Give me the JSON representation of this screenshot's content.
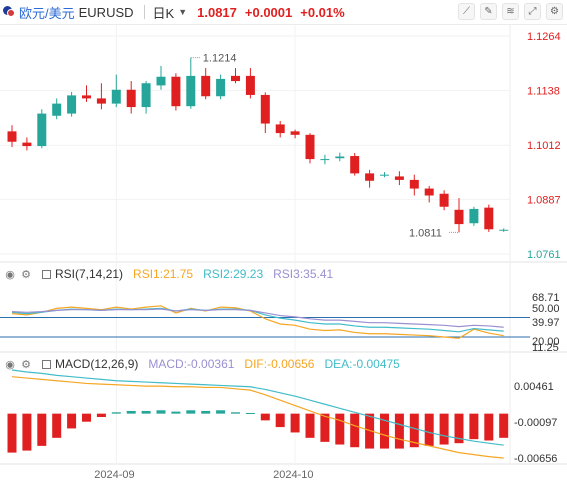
{
  "header": {
    "pair_cn": "欧元/美元",
    "pair_code": "EURUSD",
    "period": "日K",
    "price": "1.0817",
    "change": "+0.0001",
    "change_pct": "+0.01%",
    "tool_icons": [
      "line-tool-icon",
      "draw-tool-icon",
      "indicator-icon",
      "fullscreen-icon",
      "settings-icon"
    ]
  },
  "colors": {
    "up": "#26a69a",
    "down": "#e02020",
    "price_axis": "#e02020",
    "axis_green": "#26a69a",
    "rsi1": "#f5a623",
    "rsi2": "#41bcc9",
    "rsi3": "#9b8fd0",
    "macd": "#9b8fd0",
    "dif": "#f5a623",
    "dea": "#41bcc9"
  },
  "chart_data": {
    "type": "candlestick",
    "price_axis_ticks": [
      "1.1264",
      "1.1138",
      "1.1012",
      "1.0887",
      "1.0761"
    ],
    "price_ylim": [
      1.0761,
      1.1264
    ],
    "high_label": "1.1214",
    "low_label": "1.0811",
    "x_labels": [
      {
        "index": 7,
        "label": "2024-09"
      },
      {
        "index": 19,
        "label": "2024-10"
      }
    ],
    "candles": [
      {
        "o": 1.1044,
        "h": 1.1058,
        "l": 1.1008,
        "c": 1.102
      },
      {
        "o": 1.1018,
        "h": 1.103,
        "l": 1.1,
        "c": 1.101
      },
      {
        "o": 1.101,
        "h": 1.1095,
        "l": 1.1005,
        "c": 1.1085
      },
      {
        "o": 1.108,
        "h": 1.112,
        "l": 1.1072,
        "c": 1.1108
      },
      {
        "o": 1.1085,
        "h": 1.1135,
        "l": 1.1078,
        "c": 1.1127
      },
      {
        "o": 1.1127,
        "h": 1.115,
        "l": 1.1112,
        "c": 1.112
      },
      {
        "o": 1.112,
        "h": 1.1155,
        "l": 1.1095,
        "c": 1.1108
      },
      {
        "o": 1.1108,
        "h": 1.1175,
        "l": 1.11,
        "c": 1.114
      },
      {
        "o": 1.114,
        "h": 1.116,
        "l": 1.1085,
        "c": 1.11
      },
      {
        "o": 1.11,
        "h": 1.116,
        "l": 1.1085,
        "c": 1.1155
      },
      {
        "o": 1.115,
        "h": 1.1195,
        "l": 1.114,
        "c": 1.117
      },
      {
        "o": 1.117,
        "h": 1.1178,
        "l": 1.1092,
        "c": 1.1102
      },
      {
        "o": 1.1102,
        "h": 1.1214,
        "l": 1.1096,
        "c": 1.1172
      },
      {
        "o": 1.1172,
        "h": 1.119,
        "l": 1.1118,
        "c": 1.1125
      },
      {
        "o": 1.1125,
        "h": 1.1175,
        "l": 1.1118,
        "c": 1.1165
      },
      {
        "o": 1.1172,
        "h": 1.119,
        "l": 1.1155,
        "c": 1.116
      },
      {
        "o": 1.1172,
        "h": 1.119,
        "l": 1.112,
        "c": 1.1128
      },
      {
        "o": 1.1128,
        "h": 1.1134,
        "l": 1.104,
        "c": 1.1062
      },
      {
        "o": 1.106,
        "h": 1.1068,
        "l": 1.103,
        "c": 1.104
      },
      {
        "o": 1.1044,
        "h": 1.1048,
        "l": 1.1028,
        "c": 1.1036
      },
      {
        "o": 1.1036,
        "h": 1.104,
        "l": 1.097,
        "c": 1.098
      },
      {
        "o": 1.0978,
        "h": 1.099,
        "l": 1.0968,
        "c": 1.098
      },
      {
        "o": 1.0982,
        "h": 1.0995,
        "l": 1.0975,
        "c": 1.0986
      },
      {
        "o": 1.0987,
        "h": 1.0994,
        "l": 1.0942,
        "c": 1.0947
      },
      {
        "o": 1.0947,
        "h": 1.0955,
        "l": 1.0914,
        "c": 1.093
      },
      {
        "o": 1.0944,
        "h": 1.095,
        "l": 1.0938,
        "c": 1.0944
      },
      {
        "o": 1.094,
        "h": 1.0952,
        "l": 1.092,
        "c": 1.0932
      },
      {
        "o": 1.0932,
        "h": 1.0944,
        "l": 1.0896,
        "c": 1.0912
      },
      {
        "o": 1.0912,
        "h": 1.0918,
        "l": 1.088,
        "c": 1.0896
      },
      {
        "o": 1.09,
        "h": 1.0908,
        "l": 1.0862,
        "c": 1.087
      },
      {
        "o": 1.0863,
        "h": 1.089,
        "l": 1.0811,
        "c": 1.083
      },
      {
        "o": 1.0832,
        "h": 1.087,
        "l": 1.0826,
        "c": 1.0865
      },
      {
        "o": 1.0868,
        "h": 1.0875,
        "l": 1.0812,
        "c": 1.0818
      },
      {
        "o": 1.0816,
        "h": 1.082,
        "l": 1.0812,
        "c": 1.0817
      }
    ],
    "rsi": {
      "params": "RSI(7,14,21)",
      "RSI1": "21.75",
      "RSI2": "29.23",
      "RSI3": "35.41",
      "ylim": [
        0,
        100
      ],
      "axis_labels": [
        "68.71",
        "50.00",
        "39.97",
        "20.00",
        "11.25"
      ],
      "ref_lines": [
        50,
        20
      ],
      "series": [
        {
          "name": "RSI1",
          "values": [
            56,
            54,
            58,
            64,
            66,
            64,
            62,
            66,
            63,
            66,
            68,
            57,
            64,
            60,
            66,
            65,
            60,
            48,
            40,
            38,
            32,
            30,
            31,
            27,
            25,
            25,
            24,
            23,
            22,
            20,
            18,
            32,
            26,
            22
          ]
        },
        {
          "name": "RSI2",
          "values": [
            58,
            56,
            58,
            61,
            63,
            62,
            61,
            63,
            62,
            63,
            64,
            60,
            63,
            61,
            63,
            63,
            61,
            54,
            49,
            46,
            42,
            40,
            40,
            37,
            35,
            35,
            34,
            33,
            32,
            30,
            28,
            33,
            31,
            29
          ]
        },
        {
          "name": "RSI3",
          "values": [
            59,
            58,
            59,
            61,
            62,
            62,
            61,
            62,
            62,
            62,
            63,
            60,
            62,
            61,
            62,
            62,
            61,
            57,
            53,
            51,
            48,
            46,
            46,
            44,
            42,
            42,
            41,
            40,
            39,
            38,
            36,
            38,
            37,
            35
          ]
        }
      ]
    },
    "macd": {
      "params": "MACD(12,26,9)",
      "MACD": "-0.00361",
      "DIF": "-0.00656",
      "DEA": "-0.00475",
      "axis_labels": [
        "0.00461",
        "-0.00097",
        "-0.00656"
      ],
      "ylim": [
        -0.0072,
        0.0062
      ],
      "histogram": [
        -0.0058,
        -0.0055,
        -0.0048,
        -0.0036,
        -0.0022,
        -0.0012,
        -0.0005,
        0.0002,
        0.0004,
        0.0004,
        0.0005,
        0.0003,
        0.0005,
        0.0004,
        0.0005,
        0.0002,
        0.0001,
        -0.001,
        -0.002,
        -0.0028,
        -0.0036,
        -0.0042,
        -0.0046,
        -0.005,
        -0.0052,
        -0.0052,
        -0.0052,
        -0.005,
        -0.0048,
        -0.0046,
        -0.0044,
        -0.0038,
        -0.004,
        -0.0036
      ],
      "dif": [
        0.0055,
        0.0053,
        0.0051,
        0.0049,
        0.0047,
        0.0045,
        0.0044,
        0.0043,
        0.0042,
        0.0041,
        0.0041,
        0.004,
        0.004,
        0.0039,
        0.0039,
        0.0037,
        0.0035,
        0.0028,
        0.002,
        0.0012,
        0.0004,
        -0.0004,
        -0.001,
        -0.0018,
        -0.0025,
        -0.0032,
        -0.0038,
        -0.0043,
        -0.0048,
        -0.0053,
        -0.0058,
        -0.0061,
        -0.0064,
        -0.0066
      ],
      "dea": [
        0.0065,
        0.0062,
        0.006,
        0.0057,
        0.0055,
        0.0053,
        0.0051,
        0.0049,
        0.0048,
        0.0047,
        0.0046,
        0.0045,
        0.0044,
        0.0043,
        0.0042,
        0.0041,
        0.004,
        0.0036,
        0.0031,
        0.0026,
        0.002,
        0.0014,
        0.0008,
        0.0002,
        -0.0004,
        -0.001,
        -0.0016,
        -0.0022,
        -0.0028,
        -0.0033,
        -0.0037,
        -0.0041,
        -0.0044,
        -0.0047
      ]
    }
  }
}
